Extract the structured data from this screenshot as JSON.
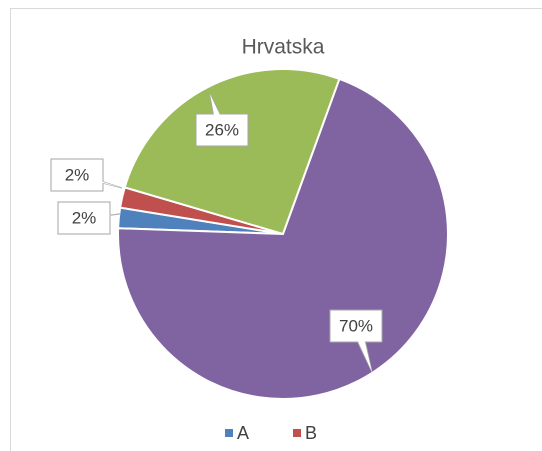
{
  "chart_data": {
    "type": "pie",
    "title": "Hrvatska",
    "categories": [
      "A",
      "B",
      null,
      null
    ],
    "values": [
      2,
      2,
      26,
      70
    ],
    "value_labels": [
      "2%",
      "2%",
      "26%",
      "70%"
    ],
    "colors": [
      "#4f81bd",
      "#c0504d",
      "#9bbb59",
      "#8064a2"
    ],
    "legend": "bottom"
  }
}
